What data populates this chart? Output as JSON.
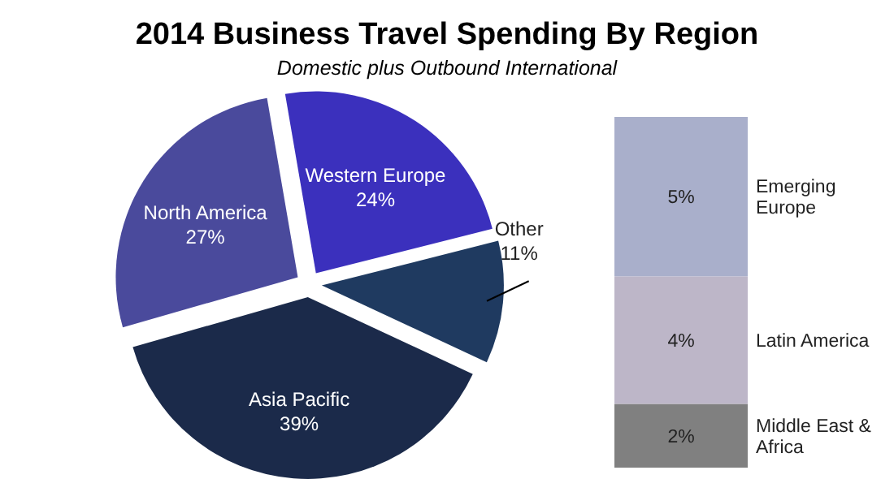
{
  "chart_data": [
    {
      "type": "pie",
      "title": "2014 Business Travel Spending By Region",
      "subtitle": "Domestic plus Outbound International",
      "categories": [
        "Western Europe",
        "Other",
        "Asia Pacific",
        "North America"
      ],
      "values": [
        24,
        11,
        39,
        27
      ],
      "colors": [
        "#3b30bd",
        "#1f3a60",
        "#1b2a4a",
        "#4a4a9c"
      ],
      "value_labels": [
        "24%",
        "11%",
        "39%",
        "27%"
      ]
    },
    {
      "type": "bar",
      "stacked": true,
      "categories": [
        null
      ],
      "series": [
        {
          "name": "Middle East & Africa",
          "color": "#808080",
          "values": [
            2
          ],
          "value_labels": [
            "2%"
          ]
        },
        {
          "name": "Latin America",
          "color": "#bdb6c8",
          "values": [
            4
          ],
          "value_labels": [
            "4%"
          ]
        },
        {
          "name": "Emerging Europe",
          "color": "#a9afcb",
          "values": [
            5
          ],
          "value_labels": [
            "5%"
          ]
        }
      ]
    }
  ]
}
